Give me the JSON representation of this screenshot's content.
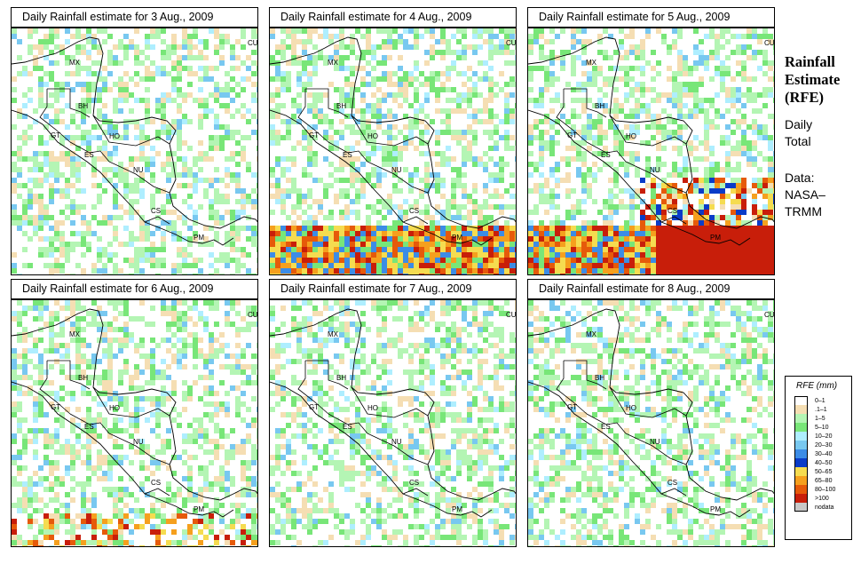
{
  "panels": [
    {
      "title": "Daily Rainfall estimate for  3 Aug., 2009",
      "intensity": 0
    },
    {
      "title": "Daily Rainfall estimate for  4 Aug., 2009",
      "intensity": 2
    },
    {
      "title": "Daily Rainfall estimate for  5 Aug., 2009",
      "intensity": 3
    },
    {
      "title": "Daily Rainfall estimate for  6 Aug., 2009",
      "intensity": 1
    },
    {
      "title": "Daily Rainfall estimate for  7 Aug., 2009",
      "intensity": 1
    },
    {
      "title": "Daily Rainfall estimate for  8 Aug., 2009",
      "intensity": 1
    }
  ],
  "country_labels": [
    "MX",
    "BH",
    "GT",
    "HO",
    "ES",
    "NU",
    "CS",
    "PM",
    "CU"
  ],
  "side": {
    "title_line1": "Rainfall",
    "title_line2": "Estimate",
    "title_line3": "(RFE)",
    "sub_line1": "Daily",
    "sub_line2": "Total",
    "data_line1": "Data:",
    "data_line2": "NASA–",
    "data_line3": "TRMM"
  },
  "legend": {
    "title": "RFE (mm)",
    "items": [
      {
        "label": "0–1",
        "color": "#ffffff"
      },
      {
        "label": ".1–1",
        "color": "#f5deb3"
      },
      {
        "label": "1–5",
        "color": "#b4f5b4"
      },
      {
        "label": "5–10",
        "color": "#78e678"
      },
      {
        "label": "10–20",
        "color": "#aeeeff"
      },
      {
        "label": "20–30",
        "color": "#78c8f0"
      },
      {
        "label": "30–40",
        "color": "#3c8ce6"
      },
      {
        "label": "40–50",
        "color": "#0a3cc8"
      },
      {
        "label": "50–65",
        "color": "#f5dc50"
      },
      {
        "label": "65–80",
        "color": "#f5a01e"
      },
      {
        "label": "80–100",
        "color": "#e65a0a"
      },
      {
        "label": ">100",
        "color": "#c81e0a"
      },
      {
        "label": "nodata",
        "color": "#c8c8c8"
      }
    ]
  }
}
